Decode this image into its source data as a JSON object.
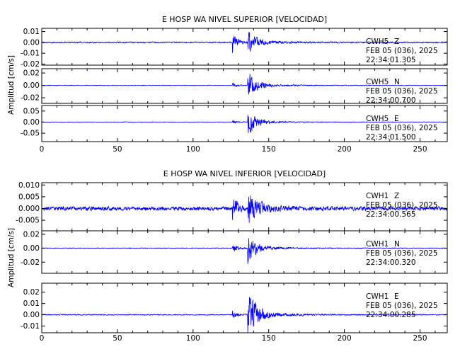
{
  "chart_data": [
    {
      "type": "line",
      "title": "E HOSP WA NIVEL SUPERIOR [VELOCIDAD]",
      "ylabel": "Amplitud [cm/s]",
      "xlim": [
        0,
        268
      ],
      "xticks": [
        "0",
        "50",
        "100",
        "150",
        "200",
        "250"
      ],
      "trace_color": "#0000ff",
      "panels": [
        {
          "station": "CWH5",
          "component": "Z",
          "date": "FEB 05 (036), 2025",
          "time": "22:34:01.305",
          "ylim": [
            -0.021,
            0.013
          ],
          "yticks": [
            "0.01",
            "0.00",
            "-0.01",
            "-0.02"
          ],
          "onsets": {
            "P": 126,
            "S": 136
          },
          "noise": 0.0007,
          "peaks": {
            "P": 0.009,
            "S": 0.011
          }
        },
        {
          "station": "CWH5",
          "component": "N",
          "date": "FEB 05 (036), 2025",
          "time": "22:34:00.700",
          "ylim": [
            -0.029,
            0.027
          ],
          "yticks": [
            "0.02",
            "0.00",
            "-0.02"
          ],
          "onsets": {
            "P": 126,
            "S": 136
          },
          "noise": 0.0006,
          "peaks": {
            "P": 0.004,
            "S": 0.024
          }
        },
        {
          "station": "CWH5",
          "component": "E",
          "date": "FEB 05 (036), 2025",
          "time": "22:34:01.500",
          "ylim": [
            -0.088,
            0.075
          ],
          "yticks": [
            "0.05",
            "0.00",
            "-0.05"
          ],
          "onsets": {
            "P": 126,
            "S": 136
          },
          "noise": 0.0015,
          "peaks": {
            "P": 0.01,
            "S": 0.06
          }
        }
      ]
    },
    {
      "type": "line",
      "title": "E HOSP WA NIVEL INFERIOR [VELOCIDAD]",
      "ylabel": "Amplitud [cm/s]",
      "xlim": [
        0,
        268
      ],
      "xticks": [
        "0",
        "50",
        "100",
        "150",
        "200",
        "250"
      ],
      "trace_color": "#0000ff",
      "panels": [
        {
          "station": "CWH1",
          "component": "Z",
          "date": "FEB 05 (036), 2025",
          "time": "22:34:00.565",
          "ylim": [
            -0.0095,
            0.011
          ],
          "yticks": [
            "0.010",
            "0.005",
            "0.000",
            "-0.005"
          ],
          "onsets": {
            "P": 126,
            "S": 136
          },
          "noise": 0.0009,
          "peaks": {
            "P": 0.006,
            "S": 0.009
          }
        },
        {
          "station": "CWH1",
          "component": "N",
          "date": "FEB 05 (036), 2025",
          "time": "22:34:00.320",
          "ylim": [
            -0.036,
            0.025
          ],
          "yticks": [
            "0.02",
            "0.00",
            "-0.02"
          ],
          "onsets": {
            "P": 126,
            "S": 136
          },
          "noise": 0.0007,
          "peaks": {
            "P": 0.008,
            "S": 0.022
          }
        },
        {
          "station": "CWH1",
          "component": "E",
          "date": "FEB 05 (036), 2025",
          "time": "22:34:00.285",
          "ylim": [
            -0.016,
            0.028
          ],
          "yticks": [
            "0.02",
            "0.01",
            "0.00",
            "-0.01"
          ],
          "onsets": {
            "P": 126,
            "S": 136
          },
          "noise": 0.0005,
          "peaks": {
            "P": 0.004,
            "S": 0.025
          }
        }
      ]
    }
  ]
}
